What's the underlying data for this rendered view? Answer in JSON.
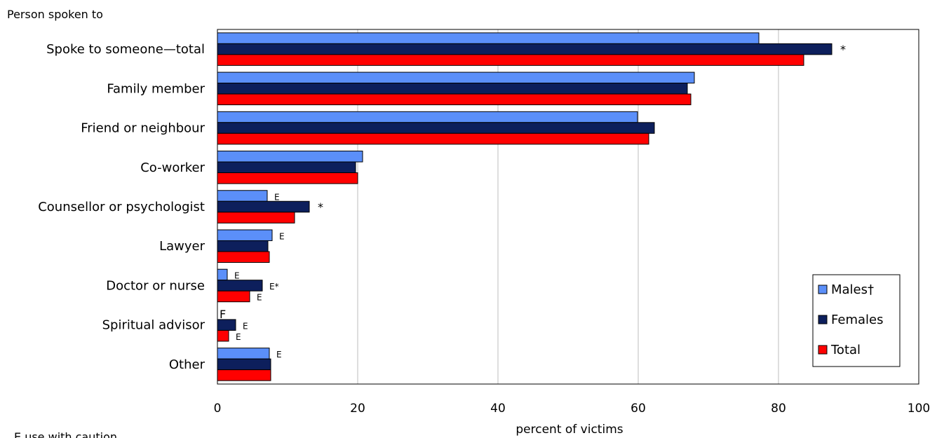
{
  "chart_data": {
    "type": "bar",
    "orientation": "horizontal",
    "ylabel": "Person spoken to",
    "xlabel": "percent of victims",
    "xlim": [
      0,
      100
    ],
    "xticks": [
      0,
      20,
      40,
      60,
      80,
      100
    ],
    "grid": true,
    "legend_position": "bottom-right",
    "categories": [
      "Spoke to someone—total",
      "Family member",
      "Friend or neighbour",
      "Co-worker",
      "Counsellor or psychologist",
      "Lawyer",
      "Doctor or nurse",
      "Spiritual advisor",
      "Other"
    ],
    "series": [
      {
        "name": "Males†",
        "color": "#5b8ff9",
        "values": [
          77.2,
          68.0,
          59.9,
          20.7,
          7.1,
          7.8,
          1.4,
          null,
          7.4
        ],
        "flags": [
          "",
          "",
          "",
          "",
          "E",
          "E",
          "E",
          "F",
          "E"
        ]
      },
      {
        "name": "Females",
        "color": "#0d1f5c",
        "values": [
          87.6,
          67.0,
          62.3,
          19.7,
          13.1,
          7.2,
          6.4,
          2.6,
          7.6
        ],
        "flags": [
          "*",
          "",
          "",
          "",
          "*",
          "",
          "E*",
          "E",
          ""
        ]
      },
      {
        "name": "Total",
        "color": "#ff0000",
        "values": [
          83.6,
          67.5,
          61.5,
          20.0,
          11.0,
          7.4,
          4.6,
          1.6,
          7.6
        ],
        "flags": [
          "",
          "",
          "",
          "",
          "",
          "",
          "E",
          "E",
          ""
        ]
      }
    ],
    "footnote": "E use with caution"
  }
}
